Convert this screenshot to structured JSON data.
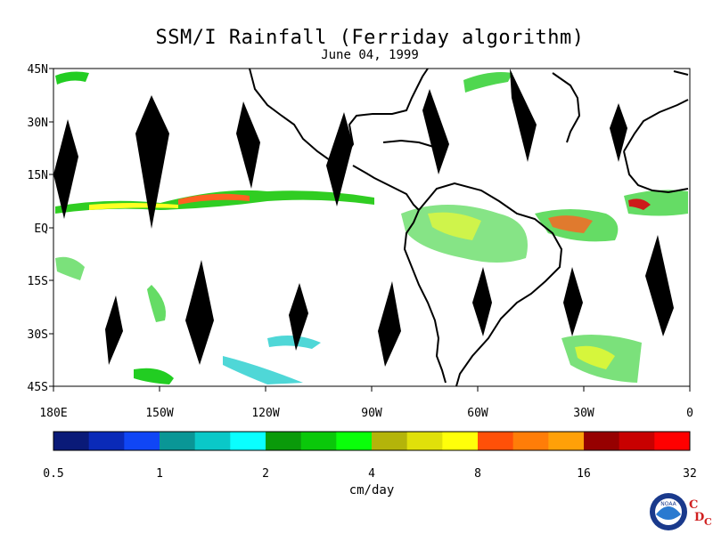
{
  "title": "SSM/I Rainfall (Ferriday algorithm)",
  "date": "June 04, 1999",
  "map": {
    "lat_labels": [
      "45N",
      "30N",
      "15N",
      "EQ",
      "15S",
      "30S",
      "45S"
    ],
    "lon_labels": [
      "180E",
      "150W",
      "120W",
      "90W",
      "60W",
      "30W",
      "0"
    ]
  },
  "colorbar": {
    "unit": "cm/day",
    "tick_labels": [
      "0.5",
      "1",
      "2",
      "4",
      "8",
      "16",
      "32"
    ],
    "colors": [
      "#0a1a78",
      "#0a2ab8",
      "#1046f5",
      "#0a9696",
      "#0ac8c8",
      "#0affff",
      "#0a9a0a",
      "#0ac80a",
      "#0aff0a",
      "#b4b40a",
      "#e0e00a",
      "#ffff0a",
      "#ff5008",
      "#ff7d08",
      "#ffa008",
      "#960000",
      "#c80000",
      "#ff0000"
    ]
  },
  "logo": {
    "noaa": "NOAA",
    "cdc_letters": [
      "C",
      "D",
      "C"
    ]
  }
}
